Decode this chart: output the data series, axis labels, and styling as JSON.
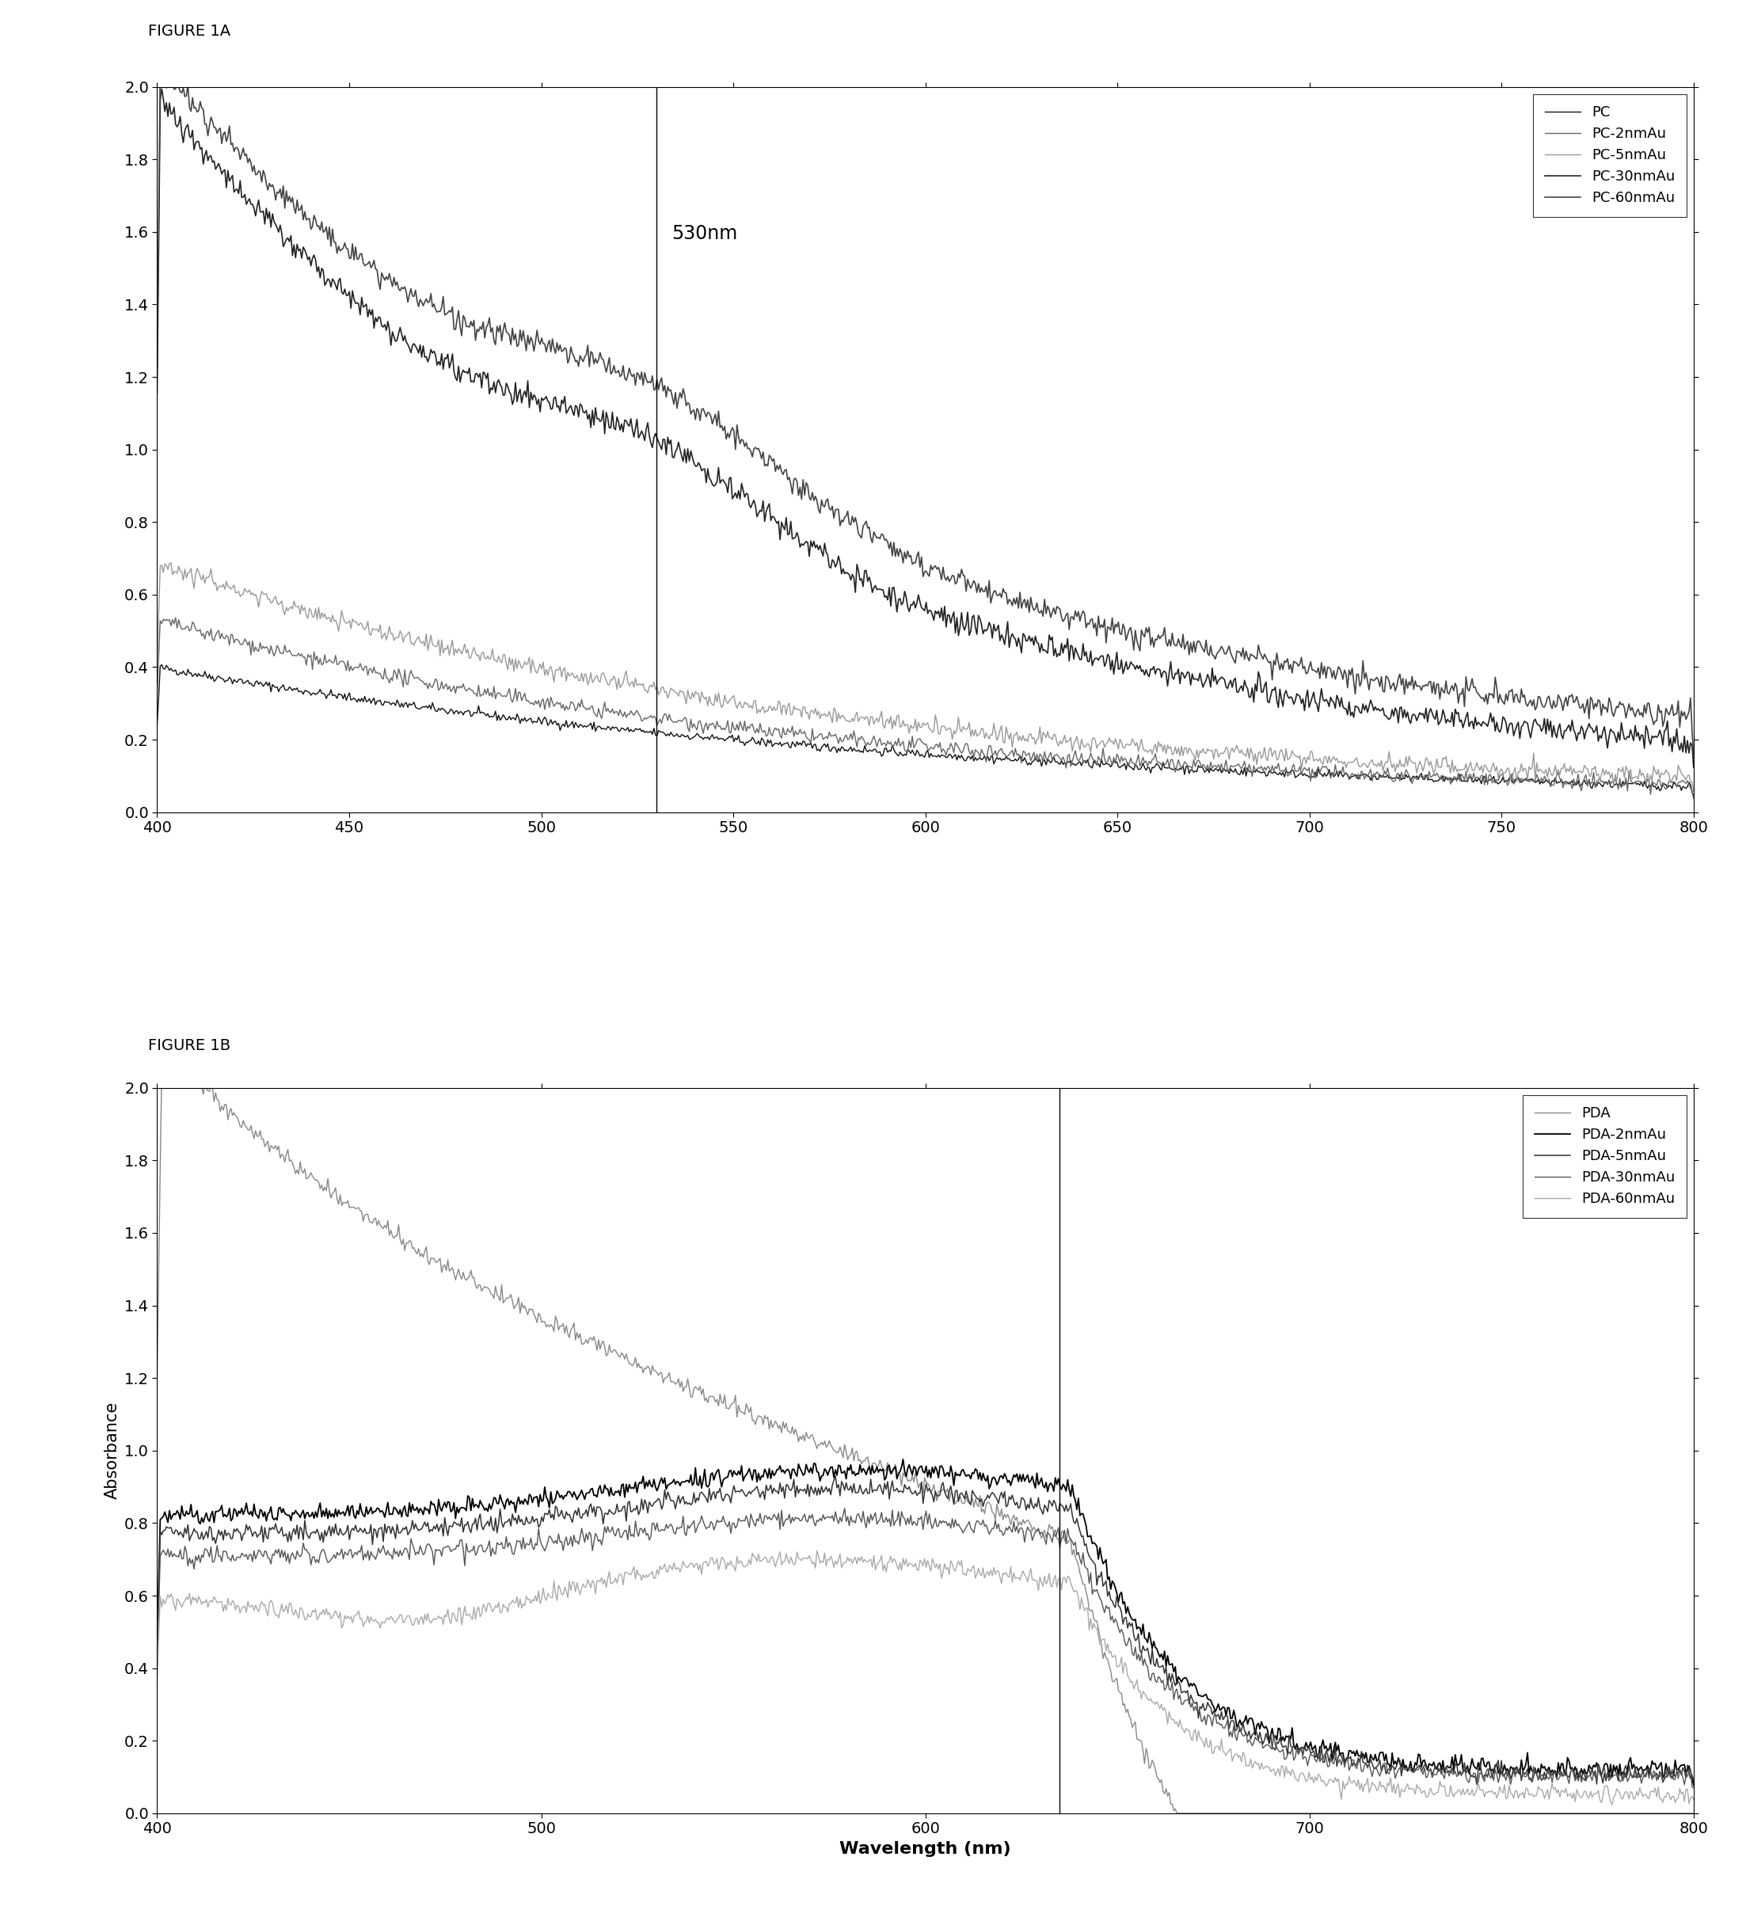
{
  "fig1a_title": "FIGURE 1A",
  "fig1b_title": "FIGURE 1B",
  "xlabel": "Wavelength (nm)",
  "ylabel": "Absorbance",
  "xlim": [
    400,
    800
  ],
  "ylim_a": [
    0.0,
    2.0
  ],
  "ylim_b": [
    0.0,
    2.0
  ],
  "yticks_a": [
    0.0,
    0.2,
    0.4,
    0.6,
    0.8,
    1.0,
    1.2,
    1.4,
    1.6,
    1.8,
    2.0
  ],
  "yticks_b": [
    0.0,
    0.2,
    0.4,
    0.6,
    0.8,
    1.0,
    1.2,
    1.4,
    1.6,
    1.8,
    2.0
  ],
  "xticks_a": [
    400,
    450,
    500,
    550,
    600,
    650,
    700,
    750,
    800
  ],
  "xticks_b": [
    400,
    500,
    600,
    700,
    800
  ],
  "vline_a": 530,
  "vline_b": 635,
  "vline_a_label": "530nm",
  "legend_a": [
    "PC",
    "PC-2nmAu",
    "PC-5nmAu",
    "PC-30nmAu",
    "PC-60nmAu"
  ],
  "legend_b": [
    "PDA",
    "PDA-2nmAu",
    "PDA-5nmAu",
    "PDA-30nmAu",
    "PDA-60nmAu"
  ],
  "background_color": "#ffffff",
  "fig_background": "#ffffff"
}
